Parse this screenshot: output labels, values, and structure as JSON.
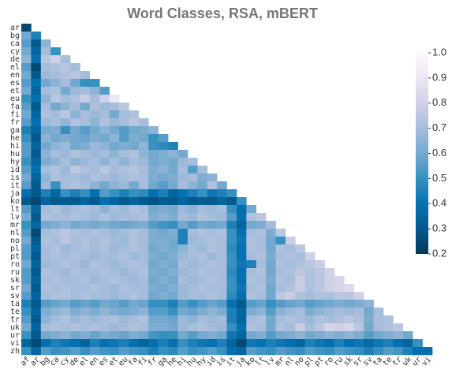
{
  "chart_data": {
    "type": "heatmap",
    "title": "Word Classes, RSA, mBERT",
    "x_categories": [
      "af",
      "ar",
      "bg",
      "ca",
      "cy",
      "de",
      "el",
      "en",
      "es",
      "et",
      "eu",
      "fa",
      "fi",
      "fr",
      "ga",
      "he",
      "hi",
      "hu",
      "hy",
      "id",
      "is",
      "it",
      "ja",
      "ko",
      "lt",
      "lv",
      "mr",
      "nl",
      "no",
      "pl",
      "pt",
      "ro",
      "ru",
      "sk",
      "sr",
      "sv",
      "ta",
      "te",
      "tr",
      "uk",
      "ur",
      "vi"
    ],
    "y_categories": [
      "ar",
      "bg",
      "ca",
      "cy",
      "de",
      "el",
      "en",
      "es",
      "et",
      "eu",
      "fa",
      "fi",
      "fr",
      "ga",
      "he",
      "hi",
      "hu",
      "hy",
      "id",
      "is",
      "it",
      "ja",
      "ko",
      "lt",
      "lv",
      "mr",
      "nl",
      "no",
      "pl",
      "pt",
      "ro",
      "ru",
      "sk",
      "sr",
      "sv",
      "ta",
      "te",
      "tr",
      "uk",
      "ur",
      "vi",
      "zh"
    ],
    "values": [
      [
        0.25
      ],
      [
        0.6,
        0.45
      ],
      [
        0.55,
        0.3,
        0.65
      ],
      [
        0.6,
        0.35,
        0.7,
        0.5
      ],
      [
        0.65,
        0.4,
        0.75,
        0.8,
        0.7
      ],
      [
        0.55,
        0.25,
        0.7,
        0.72,
        0.75,
        0.7
      ],
      [
        0.6,
        0.3,
        0.68,
        0.7,
        0.72,
        0.74,
        0.7
      ],
      [
        0.55,
        0.4,
        0.6,
        0.65,
        0.7,
        0.6,
        0.5,
        0.5
      ],
      [
        0.6,
        0.35,
        0.7,
        0.72,
        0.6,
        0.68,
        0.7,
        0.65,
        0.55
      ],
      [
        0.5,
        0.4,
        0.65,
        0.75,
        0.7,
        0.72,
        0.78,
        0.7,
        0.8,
        0.9
      ],
      [
        0.55,
        0.3,
        0.7,
        0.6,
        0.65,
        0.7,
        0.6,
        0.72,
        0.68,
        0.7,
        0.75
      ],
      [
        0.6,
        0.35,
        0.72,
        0.7,
        0.75,
        0.65,
        0.7,
        0.68,
        0.7,
        0.6,
        0.7,
        0.72
      ],
      [
        0.55,
        0.4,
        0.68,
        0.7,
        0.66,
        0.72,
        0.7,
        0.65,
        0.72,
        0.68,
        0.7,
        0.75,
        0.7
      ],
      [
        0.45,
        0.35,
        0.6,
        0.62,
        0.5,
        0.6,
        0.55,
        0.6,
        0.65,
        0.6,
        0.55,
        0.6,
        0.62,
        0.65
      ],
      [
        0.5,
        0.3,
        0.65,
        0.6,
        0.62,
        0.6,
        0.58,
        0.62,
        0.6,
        0.65,
        0.55,
        0.62,
        0.6,
        0.5,
        0.55
      ],
      [
        0.55,
        0.35,
        0.6,
        0.65,
        0.68,
        0.6,
        0.62,
        0.68,
        0.65,
        0.6,
        0.62,
        0.6,
        0.65,
        0.5,
        0.48,
        0.45
      ],
      [
        0.55,
        0.3,
        0.65,
        0.7,
        0.68,
        0.72,
        0.7,
        0.68,
        0.7,
        0.65,
        0.7,
        0.72,
        0.65,
        0.6,
        0.62,
        0.65,
        0.6
      ],
      [
        0.5,
        0.35,
        0.62,
        0.65,
        0.7,
        0.65,
        0.68,
        0.7,
        0.65,
        0.7,
        0.65,
        0.7,
        0.68,
        0.6,
        0.62,
        0.6,
        0.68,
        0.7
      ],
      [
        0.55,
        0.4,
        0.7,
        0.72,
        0.68,
        0.75,
        0.72,
        0.7,
        0.75,
        0.7,
        0.72,
        0.74,
        0.7,
        0.62,
        0.65,
        0.6,
        0.7,
        0.55,
        0.7
      ],
      [
        0.6,
        0.35,
        0.65,
        0.72,
        0.7,
        0.7,
        0.68,
        0.72,
        0.7,
        0.68,
        0.7,
        0.72,
        0.7,
        0.62,
        0.6,
        0.62,
        0.68,
        0.7,
        0.62,
        0.65
      ],
      [
        0.55,
        0.3,
        0.68,
        0.5,
        0.7,
        0.72,
        0.7,
        0.65,
        0.6,
        0.65,
        0.68,
        0.6,
        0.7,
        0.6,
        0.55,
        0.6,
        0.7,
        0.65,
        0.6,
        0.72,
        0.6
      ],
      [
        0.4,
        0.3,
        0.45,
        0.35,
        0.5,
        0.45,
        0.5,
        0.4,
        0.55,
        0.5,
        0.45,
        0.5,
        0.48,
        0.4,
        0.45,
        0.35,
        0.4,
        0.45,
        0.5,
        0.42,
        0.45,
        0.5
      ],
      [
        0.3,
        0.25,
        0.35,
        0.3,
        0.32,
        0.3,
        0.35,
        0.3,
        0.4,
        0.35,
        0.3,
        0.35,
        0.3,
        0.28,
        0.32,
        0.3,
        0.35,
        0.3,
        0.32,
        0.3,
        0.35,
        0.3,
        0.5
      ],
      [
        0.55,
        0.35,
        0.7,
        0.72,
        0.68,
        0.7,
        0.72,
        0.7,
        0.65,
        0.7,
        0.68,
        0.72,
        0.7,
        0.6,
        0.62,
        0.6,
        0.68,
        0.65,
        0.7,
        0.68,
        0.7,
        0.5,
        0.4,
        0.6
      ],
      [
        0.6,
        0.3,
        0.72,
        0.7,
        0.7,
        0.72,
        0.7,
        0.68,
        0.72,
        0.68,
        0.7,
        0.7,
        0.72,
        0.62,
        0.65,
        0.62,
        0.7,
        0.68,
        0.72,
        0.7,
        0.68,
        0.55,
        0.4,
        0.72,
        0.75
      ],
      [
        0.5,
        0.35,
        0.6,
        0.62,
        0.65,
        0.6,
        0.62,
        0.6,
        0.62,
        0.6,
        0.58,
        0.6,
        0.62,
        0.55,
        0.52,
        0.5,
        0.6,
        0.55,
        0.6,
        0.58,
        0.6,
        0.45,
        0.35,
        0.6,
        0.62,
        0.7
      ],
      [
        0.55,
        0.25,
        0.7,
        0.72,
        0.75,
        0.72,
        0.7,
        0.72,
        0.7,
        0.68,
        0.7,
        0.72,
        0.7,
        0.62,
        0.6,
        0.62,
        0.45,
        0.7,
        0.72,
        0.7,
        0.72,
        0.5,
        0.4,
        0.7,
        0.72,
        0.62,
        0.75
      ],
      [
        0.6,
        0.3,
        0.72,
        0.7,
        0.75,
        0.7,
        0.72,
        0.7,
        0.72,
        0.7,
        0.68,
        0.72,
        0.7,
        0.62,
        0.62,
        0.6,
        0.45,
        0.68,
        0.7,
        0.72,
        0.7,
        0.5,
        0.42,
        0.72,
        0.7,
        0.6,
        0.5,
        0.78
      ],
      [
        0.55,
        0.35,
        0.7,
        0.72,
        0.68,
        0.7,
        0.72,
        0.7,
        0.72,
        0.68,
        0.7,
        0.72,
        0.7,
        0.6,
        0.62,
        0.6,
        0.65,
        0.7,
        0.68,
        0.72,
        0.7,
        0.48,
        0.4,
        0.72,
        0.7,
        0.6,
        0.72,
        0.7,
        0.75
      ],
      [
        0.55,
        0.3,
        0.7,
        0.72,
        0.7,
        0.72,
        0.7,
        0.68,
        0.7,
        0.7,
        0.72,
        0.68,
        0.7,
        0.62,
        0.6,
        0.62,
        0.68,
        0.7,
        0.72,
        0.68,
        0.7,
        0.5,
        0.4,
        0.7,
        0.72,
        0.62,
        0.7,
        0.72,
        0.7,
        0.8
      ],
      [
        0.6,
        0.35,
        0.68,
        0.7,
        0.72,
        0.7,
        0.68,
        0.72,
        0.7,
        0.68,
        0.7,
        0.72,
        0.7,
        0.6,
        0.62,
        0.6,
        0.7,
        0.68,
        0.7,
        0.72,
        0.7,
        0.5,
        0.42,
        0.45,
        0.7,
        0.6,
        0.72,
        0.7,
        0.72,
        0.75,
        0.78
      ],
      [
        0.55,
        0.3,
        0.72,
        0.7,
        0.68,
        0.72,
        0.7,
        0.7,
        0.72,
        0.7,
        0.68,
        0.7,
        0.72,
        0.62,
        0.6,
        0.62,
        0.68,
        0.7,
        0.72,
        0.7,
        0.7,
        0.48,
        0.4,
        0.7,
        0.72,
        0.6,
        0.7,
        0.72,
        0.75,
        0.72,
        0.75,
        0.8
      ],
      [
        0.55,
        0.35,
        0.7,
        0.72,
        0.7,
        0.7,
        0.72,
        0.68,
        0.7,
        0.72,
        0.7,
        0.68,
        0.7,
        0.6,
        0.62,
        0.6,
        0.7,
        0.68,
        0.7,
        0.72,
        0.7,
        0.5,
        0.4,
        0.72,
        0.7,
        0.62,
        0.72,
        0.7,
        0.78,
        0.72,
        0.75,
        0.8,
        0.82
      ],
      [
        0.6,
        0.3,
        0.72,
        0.7,
        0.72,
        0.7,
        0.7,
        0.72,
        0.7,
        0.68,
        0.72,
        0.7,
        0.7,
        0.62,
        0.6,
        0.62,
        0.68,
        0.7,
        0.72,
        0.7,
        0.7,
        0.5,
        0.42,
        0.7,
        0.72,
        0.6,
        0.7,
        0.72,
        0.78,
        0.72,
        0.75,
        0.8,
        0.82,
        0.85
      ],
      [
        0.55,
        0.35,
        0.7,
        0.72,
        0.72,
        0.7,
        0.72,
        0.7,
        0.7,
        0.68,
        0.7,
        0.72,
        0.7,
        0.6,
        0.62,
        0.6,
        0.68,
        0.7,
        0.7,
        0.72,
        0.7,
        0.48,
        0.4,
        0.72,
        0.7,
        0.6,
        0.75,
        0.78,
        0.72,
        0.7,
        0.72,
        0.72,
        0.75,
        0.75,
        0.8
      ],
      [
        0.45,
        0.3,
        0.55,
        0.58,
        0.6,
        0.55,
        0.58,
        0.55,
        0.6,
        0.58,
        0.55,
        0.6,
        0.58,
        0.5,
        0.5,
        0.45,
        0.55,
        0.5,
        0.55,
        0.58,
        0.55,
        0.4,
        0.3,
        0.55,
        0.58,
        0.5,
        0.55,
        0.58,
        0.6,
        0.55,
        0.58,
        0.6,
        0.62,
        0.6,
        0.62,
        0.65
      ],
      [
        0.5,
        0.35,
        0.62,
        0.65,
        0.68,
        0.62,
        0.65,
        0.62,
        0.65,
        0.62,
        0.6,
        0.62,
        0.65,
        0.55,
        0.55,
        0.5,
        0.6,
        0.58,
        0.62,
        0.65,
        0.62,
        0.45,
        0.35,
        0.62,
        0.65,
        0.55,
        0.65,
        0.68,
        0.7,
        0.62,
        0.65,
        0.68,
        0.7,
        0.68,
        0.7,
        0.6,
        0.7
      ],
      [
        0.55,
        0.3,
        0.65,
        0.7,
        0.72,
        0.68,
        0.7,
        0.68,
        0.7,
        0.72,
        0.68,
        0.7,
        0.72,
        0.6,
        0.6,
        0.58,
        0.68,
        0.65,
        0.7,
        0.68,
        0.7,
        0.45,
        0.35,
        0.7,
        0.72,
        0.6,
        0.7,
        0.72,
        0.7,
        0.68,
        0.72,
        0.7,
        0.72,
        0.75,
        0.72,
        0.62,
        0.7,
        0.72
      ],
      [
        0.6,
        0.35,
        0.7,
        0.72,
        0.7,
        0.72,
        0.7,
        0.72,
        0.7,
        0.68,
        0.7,
        0.72,
        0.7,
        0.62,
        0.62,
        0.6,
        0.68,
        0.7,
        0.72,
        0.7,
        0.68,
        0.5,
        0.4,
        0.72,
        0.7,
        0.6,
        0.72,
        0.7,
        0.78,
        0.7,
        0.75,
        0.82,
        0.8,
        0.82,
        0.75,
        0.6,
        0.7,
        0.72,
        0.75
      ],
      [
        0.5,
        0.3,
        0.6,
        0.62,
        0.65,
        0.6,
        0.62,
        0.58,
        0.62,
        0.6,
        0.58,
        0.62,
        0.6,
        0.52,
        0.5,
        0.5,
        0.6,
        0.55,
        0.6,
        0.62,
        0.6,
        0.42,
        0.35,
        0.6,
        0.62,
        0.55,
        0.6,
        0.62,
        0.65,
        0.6,
        0.62,
        0.65,
        0.62,
        0.65,
        0.62,
        0.55,
        0.6,
        0.62,
        0.65,
        0.6
      ],
      [
        0.35,
        0.25,
        0.4,
        0.45,
        0.42,
        0.4,
        0.35,
        0.45,
        0.4,
        0.42,
        0.45,
        0.4,
        0.35,
        0.4,
        0.45,
        0.4,
        0.5,
        0.45,
        0.42,
        0.4,
        0.45,
        0.35,
        0.25,
        0.42,
        0.4,
        0.45,
        0.42,
        0.4,
        0.35,
        0.45,
        0.42,
        0.4,
        0.45,
        0.4,
        0.42,
        0.38,
        0.42,
        0.45,
        0.4,
        0.35,
        0.5
      ],
      [
        0.5,
        0.35,
        0.55,
        0.5,
        0.52,
        0.55,
        0.5,
        0.55,
        0.52,
        0.5,
        0.55,
        0.52,
        0.5,
        0.45,
        0.5,
        0.48,
        0.55,
        0.5,
        0.52,
        0.55,
        0.5,
        0.4,
        0.35,
        0.55,
        0.52,
        0.5,
        0.55,
        0.52,
        0.5,
        0.55,
        0.52,
        0.5,
        0.55,
        0.52,
        0.5,
        0.45,
        0.5,
        0.55,
        0.52,
        0.45,
        0.4,
        0.4
      ]
    ],
    "zlim": [
      0.2,
      1.0
    ],
    "zticks": [
      0.2,
      0.3,
      0.4,
      0.5,
      0.6,
      0.7,
      0.8,
      0.9,
      {
        "value": 1,
        "label": "1.0"
      }
    ],
    "colormap": [
      "#023858",
      "#045a8d",
      "#0570b0",
      "#3690c0",
      "#74a9cf",
      "#a6bddb",
      "#d0d1e6",
      "#ece7f2",
      "#fff7fb"
    ]
  }
}
